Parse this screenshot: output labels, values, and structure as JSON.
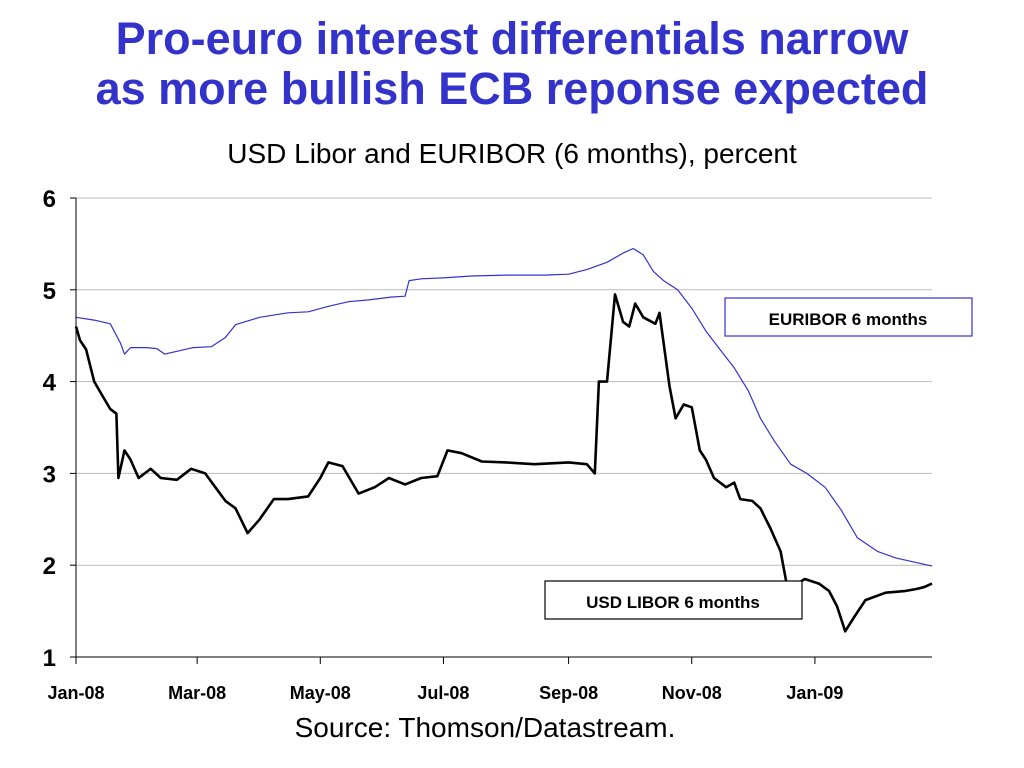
{
  "title_line1": "Pro-euro interest differentials narrow",
  "title_line2": "as more bullish ECB reponse expected",
  "subtitle": "USD Libor and EURIBOR (6 months), percent",
  "source": "Source: Thomson/Datastream.",
  "chart_data": {
    "type": "line",
    "ylim": [
      1,
      6
    ],
    "y_ticks": [
      1,
      2,
      3,
      4,
      5,
      6
    ],
    "x_range": [
      "2008-01-01",
      "2009-02-28"
    ],
    "x_tick_labels": [
      {
        "date": "2008-01-01",
        "label": "Jan-08"
      },
      {
        "date": "2008-03-01",
        "label": "Mar-08"
      },
      {
        "date": "2008-05-01",
        "label": "May-08"
      },
      {
        "date": "2008-07-01",
        "label": "Jul-08"
      },
      {
        "date": "2008-09-01",
        "label": "Sep-08"
      },
      {
        "date": "2008-11-01",
        "label": "Nov-08"
      },
      {
        "date": "2009-01-01",
        "label": "Jan-09"
      }
    ],
    "grid": true,
    "series": [
      {
        "name": "EURIBOR 6 months",
        "color": "#3333cc",
        "points": [
          [
            "2008-01-01",
            4.7
          ],
          [
            "2008-01-10",
            4.67
          ],
          [
            "2008-01-18",
            4.63
          ],
          [
            "2008-01-23",
            4.42
          ],
          [
            "2008-01-25",
            4.3
          ],
          [
            "2008-01-28",
            4.37
          ],
          [
            "2008-02-05",
            4.37
          ],
          [
            "2008-02-10",
            4.36
          ],
          [
            "2008-02-14",
            4.3
          ],
          [
            "2008-02-20",
            4.33
          ],
          [
            "2008-02-28",
            4.37
          ],
          [
            "2008-03-08",
            4.38
          ],
          [
            "2008-03-15",
            4.48
          ],
          [
            "2008-03-20",
            4.62
          ],
          [
            "2008-04-01",
            4.7
          ],
          [
            "2008-04-15",
            4.75
          ],
          [
            "2008-04-25",
            4.76
          ],
          [
            "2008-05-05",
            4.82
          ],
          [
            "2008-05-15",
            4.87
          ],
          [
            "2008-05-25",
            4.89
          ],
          [
            "2008-06-05",
            4.92
          ],
          [
            "2008-06-12",
            4.93
          ],
          [
            "2008-06-14",
            5.1
          ],
          [
            "2008-06-20",
            5.12
          ],
          [
            "2008-07-01",
            5.13
          ],
          [
            "2008-07-15",
            5.15
          ],
          [
            "2008-08-01",
            5.16
          ],
          [
            "2008-08-20",
            5.16
          ],
          [
            "2008-09-01",
            5.17
          ],
          [
            "2008-09-10",
            5.22
          ],
          [
            "2008-09-20",
            5.3
          ],
          [
            "2008-09-28",
            5.4
          ],
          [
            "2008-10-03",
            5.45
          ],
          [
            "2008-10-08",
            5.38
          ],
          [
            "2008-10-13",
            5.2
          ],
          [
            "2008-10-18",
            5.1
          ],
          [
            "2008-10-25",
            5.0
          ],
          [
            "2008-11-01",
            4.8
          ],
          [
            "2008-11-08",
            4.55
          ],
          [
            "2008-11-15",
            4.35
          ],
          [
            "2008-11-22",
            4.15
          ],
          [
            "2008-11-29",
            3.9
          ],
          [
            "2008-12-05",
            3.6
          ],
          [
            "2008-12-12",
            3.35
          ],
          [
            "2008-12-20",
            3.1
          ],
          [
            "2008-12-28",
            3.0
          ],
          [
            "2009-01-06",
            2.85
          ],
          [
            "2009-01-14",
            2.6
          ],
          [
            "2009-01-22",
            2.3
          ],
          [
            "2009-02-01",
            2.15
          ],
          [
            "2009-02-10",
            2.08
          ],
          [
            "2009-02-20",
            2.03
          ],
          [
            "2009-02-28",
            1.99
          ]
        ]
      },
      {
        "name": "USD LIBOR 6 months",
        "color": "#000000",
        "points": [
          [
            "2008-01-01",
            4.6
          ],
          [
            "2008-01-03",
            4.45
          ],
          [
            "2008-01-06",
            4.35
          ],
          [
            "2008-01-10",
            4.0
          ],
          [
            "2008-01-14",
            3.85
          ],
          [
            "2008-01-18",
            3.7
          ],
          [
            "2008-01-21",
            3.65
          ],
          [
            "2008-01-22",
            2.95
          ],
          [
            "2008-01-25",
            3.25
          ],
          [
            "2008-01-28",
            3.15
          ],
          [
            "2008-02-01",
            2.95
          ],
          [
            "2008-02-07",
            3.05
          ],
          [
            "2008-02-12",
            2.95
          ],
          [
            "2008-02-20",
            2.93
          ],
          [
            "2008-02-27",
            3.05
          ],
          [
            "2008-03-05",
            3.0
          ],
          [
            "2008-03-10",
            2.85
          ],
          [
            "2008-03-15",
            2.7
          ],
          [
            "2008-03-20",
            2.62
          ],
          [
            "2008-03-26",
            2.35
          ],
          [
            "2008-04-01",
            2.5
          ],
          [
            "2008-04-08",
            2.72
          ],
          [
            "2008-04-15",
            2.72
          ],
          [
            "2008-04-25",
            2.75
          ],
          [
            "2008-05-01",
            2.95
          ],
          [
            "2008-05-05",
            3.12
          ],
          [
            "2008-05-12",
            3.08
          ],
          [
            "2008-05-20",
            2.78
          ],
          [
            "2008-05-28",
            2.85
          ],
          [
            "2008-06-04",
            2.95
          ],
          [
            "2008-06-12",
            2.88
          ],
          [
            "2008-06-20",
            2.95
          ],
          [
            "2008-06-28",
            2.97
          ],
          [
            "2008-07-03",
            3.25
          ],
          [
            "2008-07-10",
            3.22
          ],
          [
            "2008-07-20",
            3.13
          ],
          [
            "2008-08-01",
            3.12
          ],
          [
            "2008-08-15",
            3.1
          ],
          [
            "2008-09-01",
            3.12
          ],
          [
            "2008-09-10",
            3.1
          ],
          [
            "2008-09-14",
            3.0
          ],
          [
            "2008-09-16",
            4.0
          ],
          [
            "2008-09-20",
            4.0
          ],
          [
            "2008-09-24",
            4.95
          ],
          [
            "2008-09-28",
            4.65
          ],
          [
            "2008-10-01",
            4.6
          ],
          [
            "2008-10-04",
            4.85
          ],
          [
            "2008-10-08",
            4.7
          ],
          [
            "2008-10-14",
            4.63
          ],
          [
            "2008-10-16",
            4.75
          ],
          [
            "2008-10-21",
            3.95
          ],
          [
            "2008-10-24",
            3.6
          ],
          [
            "2008-10-28",
            3.75
          ],
          [
            "2008-11-01",
            3.72
          ],
          [
            "2008-11-05",
            3.25
          ],
          [
            "2008-11-08",
            3.15
          ],
          [
            "2008-11-12",
            2.95
          ],
          [
            "2008-11-18",
            2.85
          ],
          [
            "2008-11-22",
            2.9
          ],
          [
            "2008-11-25",
            2.72
          ],
          [
            "2008-12-01",
            2.7
          ],
          [
            "2008-12-05",
            2.62
          ],
          [
            "2008-12-10",
            2.4
          ],
          [
            "2008-12-15",
            2.15
          ],
          [
            "2008-12-18",
            1.8
          ],
          [
            "2008-12-22",
            1.78
          ],
          [
            "2008-12-27",
            1.85
          ],
          [
            "2009-01-03",
            1.8
          ],
          [
            "2009-01-08",
            1.72
          ],
          [
            "2009-01-12",
            1.55
          ],
          [
            "2009-01-16",
            1.28
          ],
          [
            "2009-01-20",
            1.42
          ],
          [
            "2009-01-26",
            1.62
          ],
          [
            "2009-02-05",
            1.7
          ],
          [
            "2009-02-15",
            1.72
          ],
          [
            "2009-02-20",
            1.74
          ],
          [
            "2009-02-24",
            1.76
          ],
          [
            "2009-02-28",
            1.8
          ]
        ]
      }
    ],
    "legend": {
      "euribor_label": "EURIBOR 6 months",
      "libor_label": "USD LIBOR 6 months"
    },
    "legend_placement": "inline labels beside each series",
    "colors": {
      "axis": "#000000",
      "grid": "#bbbbbb",
      "euribor": "#3333cc",
      "libor": "#000000"
    }
  }
}
